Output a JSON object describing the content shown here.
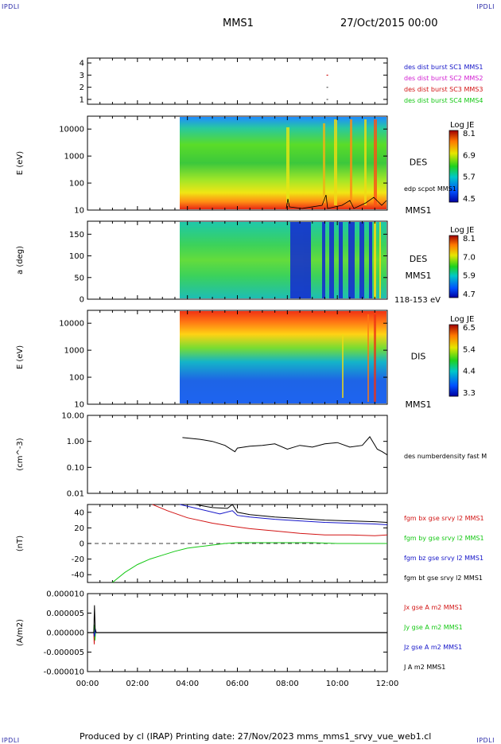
{
  "page": {
    "corner_label": "IPDLI",
    "spacecraft": "MMS1",
    "date": "27/Oct/2015 00:00",
    "footer": "Produced by cl (IRAP)   Printing date: 27/Nov/2023   mms_mms1_srvy_vue_web1.cl"
  },
  "time_axis": {
    "start_hours": 0,
    "end_hours": 12,
    "ticks": [
      "00:00",
      "02:00",
      "04:00",
      "06:00",
      "08:00",
      "10:00",
      "12:00"
    ]
  },
  "colors": {
    "blue": "#1414c8",
    "magenta": "#d21ed2",
    "red": "#d21414",
    "green": "#14c814",
    "black": "#000000"
  },
  "chart_data": [
    {
      "type": "scatter",
      "id": "burst_panel",
      "ylim": [
        0.6,
        4.4
      ],
      "yticks": [
        "1",
        "2",
        "3",
        "4"
      ],
      "legend": [
        {
          "text": "des dist burst SC1 MMS1",
          "color": "#1414c8"
        },
        {
          "text": "des dist burst SC2 MMS2",
          "color": "#d21ed2"
        },
        {
          "text": "des dist burst SC3 MMS3",
          "color": "#d21414"
        },
        {
          "text": "des dist burst SC4 MMS4",
          "color": "#14c814"
        }
      ],
      "points": [
        {
          "t": 9.6,
          "y": 3,
          "color": "#d21414"
        },
        {
          "t": 9.6,
          "y": 2,
          "color": "#555555"
        },
        {
          "t": 9.6,
          "y": 1,
          "color": "#555555"
        }
      ]
    },
    {
      "type": "heatmap",
      "id": "des_energy",
      "ylabel": "E (eV)",
      "yscale": "log",
      "ylim": [
        10,
        30000
      ],
      "yticks": [
        "10",
        "100",
        "1000",
        "10000"
      ],
      "data_start_hours": 3.6,
      "instrument_label": "DES",
      "spacecraft_label": "MMS1",
      "overlay_label": "edp scpot MMS1",
      "colorbar": {
        "title": "Log JE",
        "ticks": [
          "8.1",
          "6.9",
          "5.7",
          "4.5"
        ]
      }
    },
    {
      "type": "heatmap",
      "id": "des_pitch",
      "ylabel": "a (deg)",
      "ylim": [
        0,
        180
      ],
      "yticks": [
        "0",
        "50",
        "100",
        "150"
      ],
      "data_start_hours": 3.6,
      "instrument_label": "DES",
      "spacecraft_label": "MMS1",
      "energy_label": "118-153 eV",
      "colorbar": {
        "title": "Log JE",
        "ticks": [
          "8.1",
          "7.0",
          "5.9",
          "4.7"
        ]
      }
    },
    {
      "type": "heatmap",
      "id": "dis_energy",
      "ylabel": "E (eV)",
      "yscale": "log",
      "ylim": [
        10,
        30000
      ],
      "yticks": [
        "10",
        "100",
        "1000",
        "10000"
      ],
      "data_start_hours": 3.6,
      "instrument_label": "DIS",
      "spacecraft_label": "MMS1",
      "colorbar": {
        "title": "Log JE",
        "ticks": [
          "6.5",
          "5.4",
          "4.4",
          "3.3"
        ]
      }
    },
    {
      "type": "line",
      "id": "density",
      "ylabel": "(cm^-3)",
      "yscale": "log",
      "ylim": [
        0.01,
        10
      ],
      "yticks": [
        "0.01",
        "0.10",
        "1.00",
        "10.00"
      ],
      "series": [
        {
          "name": "des numberdensity fast M",
          "color": "#000000",
          "t": [
            3.8,
            4.5,
            5.0,
            5.5,
            5.9,
            6.0,
            6.5,
            7.0,
            7.5,
            8.0,
            8.5,
            9.0,
            9.5,
            10.0,
            10.5,
            11.0,
            11.3,
            11.6,
            11.8,
            12.0
          ],
          "y": [
            1.4,
            1.2,
            1.0,
            0.7,
            0.4,
            0.55,
            0.65,
            0.7,
            0.8,
            0.5,
            0.7,
            0.6,
            0.8,
            0.9,
            0.6,
            0.7,
            1.5,
            0.5,
            0.4,
            0.3
          ]
        }
      ]
    },
    {
      "type": "line",
      "id": "fgm",
      "ylabel": "(nT)",
      "ylim": [
        -50,
        50
      ],
      "yticks": [
        "-40",
        "-20",
        "0",
        "20",
        "40"
      ],
      "zero_line": true,
      "series": [
        {
          "name": "fgm bx gse srvy l2 MMS1",
          "color": "#d21414",
          "t": [
            2.6,
            3.2,
            4.0,
            5.0,
            5.8,
            6.5,
            7.5,
            8.5,
            9.5,
            10.5,
            11.5,
            12.0
          ],
          "y": [
            50,
            42,
            33,
            26,
            22,
            19,
            16,
            13,
            11,
            11,
            10,
            11
          ]
        },
        {
          "name": "fgm by gse srvy l2 MMS1",
          "color": "#14c814",
          "t": [
            1.0,
            1.5,
            2.0,
            2.5,
            3.0,
            3.5,
            4.0,
            4.5,
            5.0,
            5.5,
            6.0,
            7.0,
            8.0,
            9.0,
            10.0,
            11.0,
            12.0
          ],
          "y": [
            -50,
            -37,
            -27,
            -20,
            -15,
            -10,
            -6,
            -4,
            -2,
            0,
            1,
            1,
            1,
            1,
            0,
            0,
            0
          ]
        },
        {
          "name": "fgm bz gse srvy l2 MMS1",
          "color": "#1414c8",
          "t": [
            3.7,
            4.5,
            5.3,
            5.8,
            6.0,
            6.5,
            7.5,
            8.5,
            9.5,
            10.5,
            11.5,
            12.0
          ],
          "y": [
            50,
            44,
            38,
            42,
            36,
            34,
            31,
            29,
            27,
            26,
            25,
            24
          ]
        },
        {
          "name": "fgm bt gse srvy l2 MMS1",
          "color": "#000000",
          "t": [
            4.3,
            5.0,
            5.6,
            5.8,
            6.0,
            6.5,
            7.5,
            8.5,
            9.5,
            10.5,
            11.5,
            12.0
          ],
          "y": [
            50,
            46,
            45,
            50,
            40,
            37,
            34,
            32,
            30,
            29,
            28,
            27
          ]
        }
      ]
    },
    {
      "type": "line",
      "id": "current",
      "ylabel": "(A/m2)",
      "ylim": [
        -1e-05,
        1e-05
      ],
      "yticks": [
        "-0.000010",
        "-0.000005",
        "0.000000",
        "0.000005",
        "0.000010"
      ],
      "series": [
        {
          "name": "Jx gse A m2 MMS1",
          "color": "#d21414",
          "t": [
            0.0,
            0.25,
            0.27,
            0.29,
            0.32,
            12.0
          ],
          "y": [
            0,
            0,
            -3e-06,
            0,
            0,
            0
          ]
        },
        {
          "name": "Jy gse A m2 MMS1",
          "color": "#14c814",
          "t": [
            0.0,
            0.25,
            0.28,
            0.3,
            0.32,
            12.0
          ],
          "y": [
            0,
            0,
            2e-06,
            -2e-06,
            0,
            0
          ]
        },
        {
          "name": "Jz gse A m2 MMS1",
          "color": "#1414c8",
          "t": [
            0.0,
            0.25,
            0.28,
            0.31,
            0.33,
            12.0
          ],
          "y": [
            0,
            0,
            -1e-06,
            1e-06,
            0,
            0
          ]
        },
        {
          "name": "J A m2 MMS1",
          "color": "#000000",
          "t": [
            0.0,
            0.25,
            0.28,
            0.31,
            0.35,
            12.0
          ],
          "y": [
            0,
            0,
            7e-06,
            1e-06,
            0,
            0
          ]
        }
      ]
    }
  ]
}
